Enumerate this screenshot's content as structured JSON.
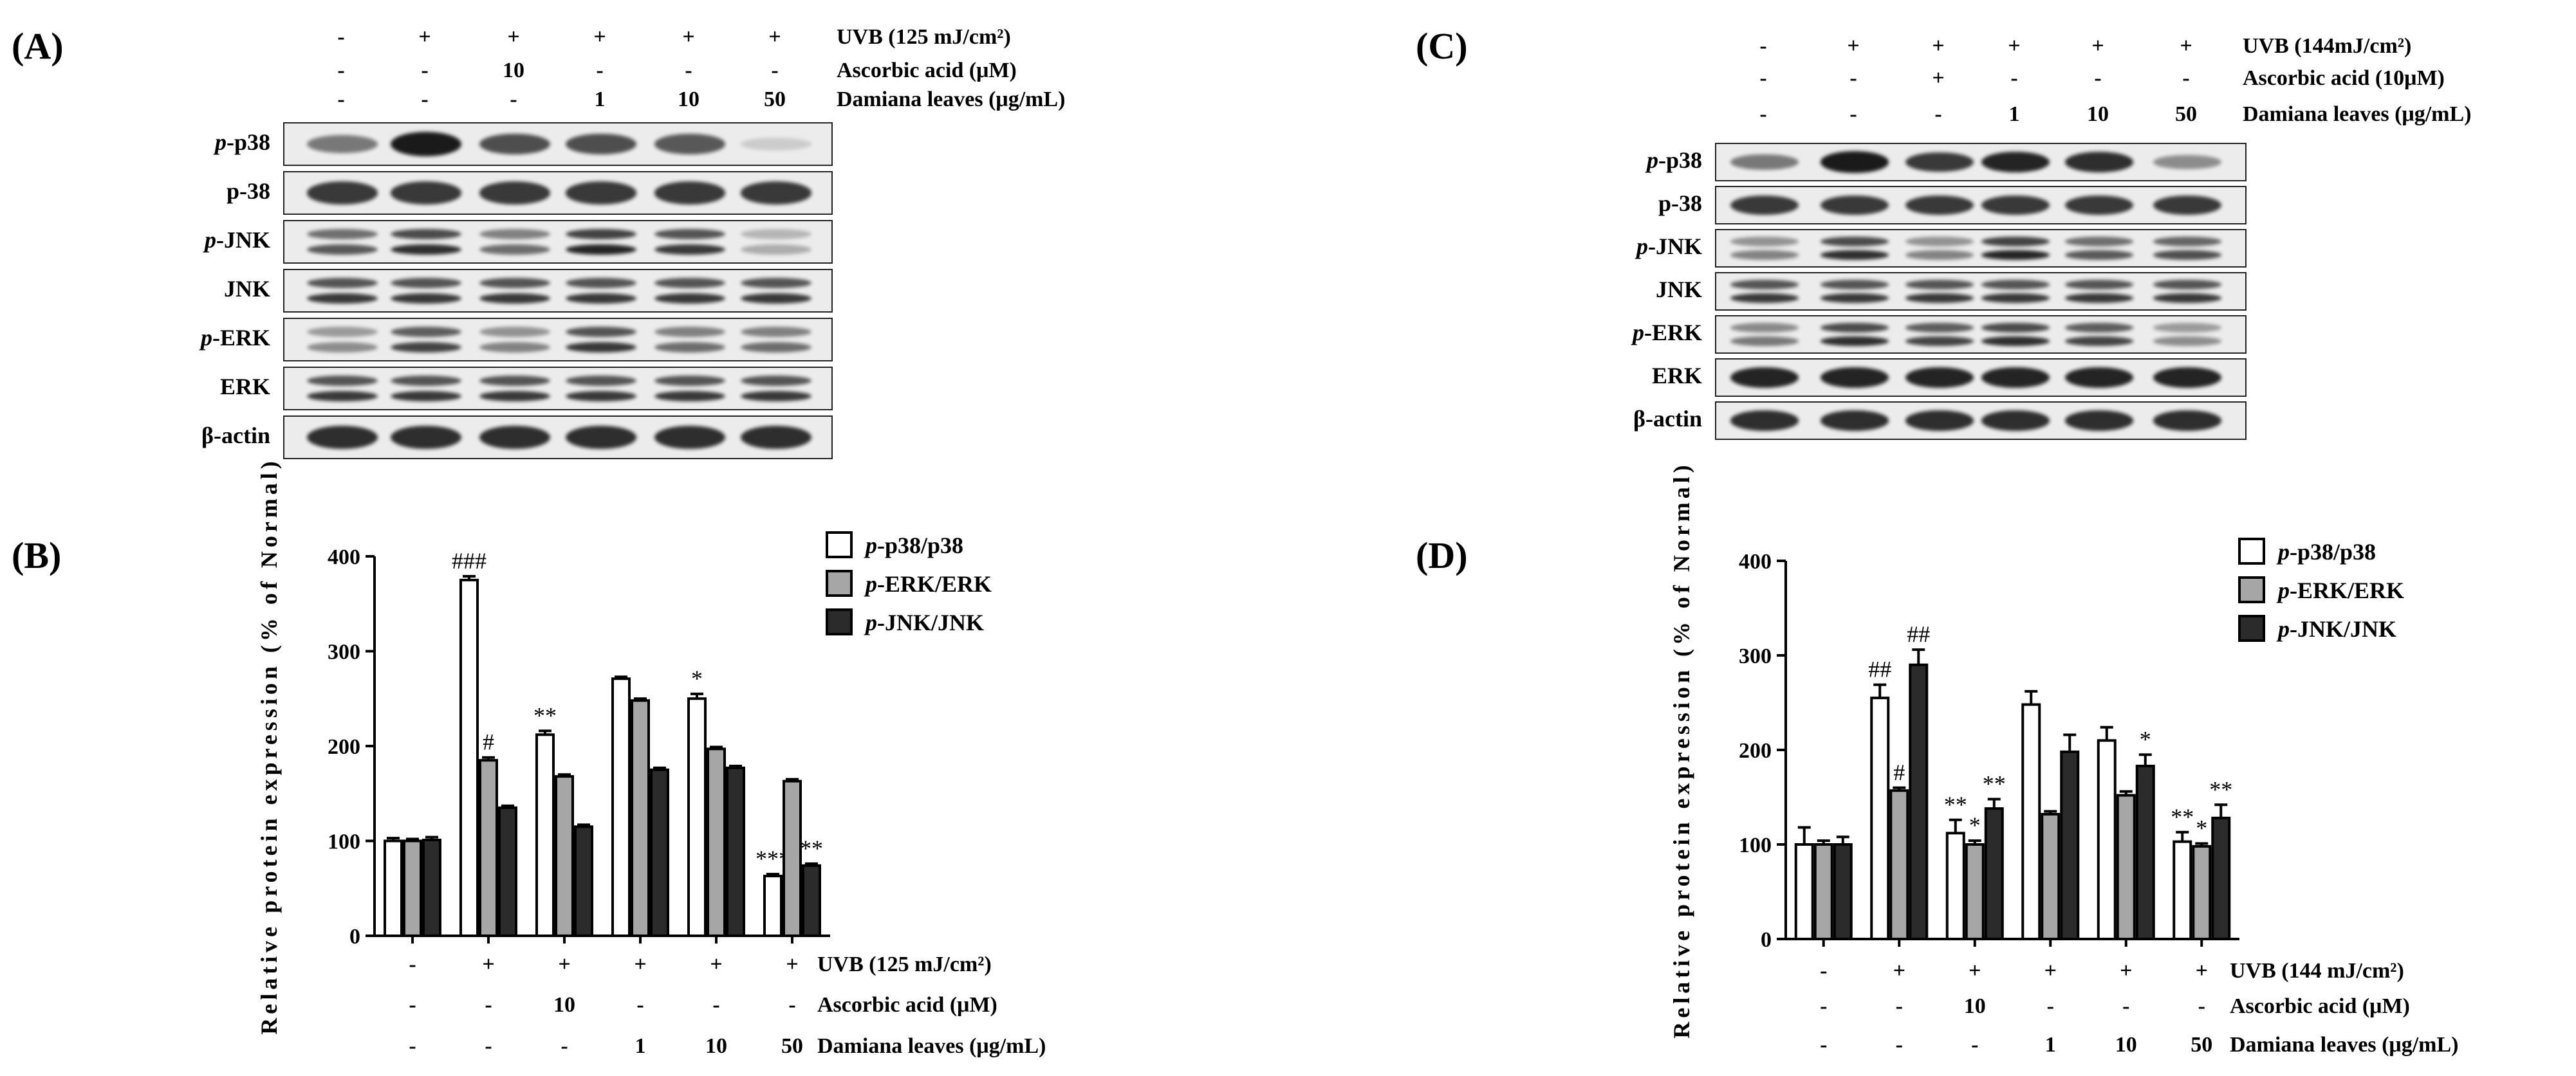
{
  "panels": {
    "A": {
      "label": "(A)",
      "treatments": [
        {
          "label": "UVB (125 mJ/cm²)",
          "values": [
            "-",
            "+",
            "+",
            "+",
            "+",
            "+"
          ]
        },
        {
          "label": "Ascorbic acid (μM)",
          "values": [
            "-",
            "-",
            "10",
            "-",
            "-",
            "-"
          ]
        },
        {
          "label": "Damiana leaves (μg/mL)",
          "values": [
            "-",
            "-",
            "-",
            "1",
            "10",
            "50"
          ]
        }
      ],
      "blots": [
        {
          "prefix": "p",
          "name": "-p38",
          "intensity": [
            0.55,
            1.0,
            0.75,
            0.75,
            0.7,
            0.15
          ],
          "double": false
        },
        {
          "prefix": "",
          "name": "p-38",
          "intensity": [
            0.85,
            0.85,
            0.85,
            0.85,
            0.85,
            0.85
          ],
          "double": false
        },
        {
          "prefix": "p",
          "name": "-JNK",
          "intensity": [
            0.7,
            0.9,
            0.6,
            0.95,
            0.85,
            0.3
          ],
          "double": true
        },
        {
          "prefix": "",
          "name": "JNK",
          "intensity": [
            0.85,
            0.85,
            0.85,
            0.85,
            0.85,
            0.85
          ],
          "double": true
        },
        {
          "prefix": "p",
          "name": "-ERK",
          "intensity": [
            0.45,
            0.8,
            0.5,
            0.85,
            0.6,
            0.6
          ],
          "double": true
        },
        {
          "prefix": "",
          "name": "ERK",
          "intensity": [
            0.85,
            0.85,
            0.85,
            0.85,
            0.85,
            0.85
          ],
          "double": true
        },
        {
          "prefix": "",
          "name": "β-actin",
          "intensity": [
            0.9,
            0.9,
            0.9,
            0.9,
            0.9,
            0.9
          ],
          "double": false
        }
      ]
    },
    "B": {
      "label": "(B)",
      "treatments": [
        {
          "label": "UVB (125 mJ/cm²)",
          "values": [
            "-",
            "+",
            "+",
            "+",
            "+",
            "+"
          ]
        },
        {
          "label": "Ascorbic acid (μM)",
          "values": [
            "-",
            "-",
            "10",
            "-",
            "-",
            "-"
          ]
        },
        {
          "label": "Damiana leaves (μg/mL)",
          "values": [
            "-",
            "-",
            "-",
            "1",
            "10",
            "50"
          ]
        }
      ]
    },
    "C": {
      "label": "(C)",
      "treatments": [
        {
          "label": "UVB (144mJ/cm²)",
          "values": [
            "-",
            "+",
            "+",
            "+",
            "+",
            "+"
          ]
        },
        {
          "label": "Ascorbic acid (10μM)",
          "values": [
            "-",
            "-",
            "+",
            "-",
            "-",
            "-"
          ]
        },
        {
          "label": "Damiana leaves (μg/mL)",
          "values": [
            "-",
            "-",
            "-",
            "1",
            "10",
            "50"
          ]
        }
      ],
      "blots": [
        {
          "prefix": "p",
          "name": "-p38",
          "intensity": [
            0.55,
            1.0,
            0.85,
            0.95,
            0.9,
            0.45
          ],
          "double": false
        },
        {
          "prefix": "",
          "name": "p-38",
          "intensity": [
            0.85,
            0.85,
            0.85,
            0.85,
            0.85,
            0.85
          ],
          "double": false
        },
        {
          "prefix": "p",
          "name": "-JNK",
          "intensity": [
            0.5,
            0.9,
            0.5,
            0.95,
            0.7,
            0.75
          ],
          "double": true
        },
        {
          "prefix": "",
          "name": "JNK",
          "intensity": [
            0.85,
            0.85,
            0.85,
            0.85,
            0.85,
            0.85
          ],
          "double": true
        },
        {
          "prefix": "p",
          "name": "-ERK",
          "intensity": [
            0.55,
            0.9,
            0.8,
            0.9,
            0.8,
            0.45
          ],
          "double": true
        },
        {
          "prefix": "",
          "name": "ERK",
          "intensity": [
            0.95,
            0.95,
            0.95,
            0.95,
            0.95,
            0.95
          ],
          "double": false
        },
        {
          "prefix": "",
          "name": "β-actin",
          "intensity": [
            0.9,
            0.9,
            0.9,
            0.9,
            0.9,
            0.9
          ],
          "double": false
        }
      ]
    },
    "D": {
      "label": "(D)",
      "treatments": [
        {
          "label": "UVB (144 mJ/cm²)",
          "values": [
            "-",
            "+",
            "+",
            "+",
            "+",
            "+"
          ]
        },
        {
          "label": "Ascorbic acid (μM)",
          "values": [
            "-",
            "-",
            "10",
            "-",
            "-",
            "-"
          ]
        },
        {
          "label": "Damiana leaves (μg/mL)",
          "values": [
            "-",
            "-",
            "-",
            "1",
            "10",
            "50"
          ]
        }
      ]
    }
  },
  "chart_data": [
    {
      "panel": "B",
      "type": "bar",
      "ylabel": "Relative protein expression (% of Normal)",
      "ylim": [
        0,
        400
      ],
      "yticks": [
        0,
        100,
        200,
        300,
        400
      ],
      "colors": [
        "#ffffff",
        "#a6a6a6",
        "#2b2b2b"
      ],
      "series": [
        {
          "name": "p-p38/p38",
          "prefix": "p",
          "suffix": "-p38/p38",
          "values": [
            100,
            375,
            212,
            271,
            250,
            63
          ],
          "errors": [
            3,
            4,
            4,
            2,
            5,
            2
          ],
          "annotations": [
            "",
            "###",
            "**",
            "",
            "*",
            "***"
          ]
        },
        {
          "name": "p-ERK/ERK",
          "prefix": "p",
          "suffix": "-ERK/ERK",
          "values": [
            100,
            185,
            168,
            248,
            197,
            163
          ],
          "errors": [
            2,
            3,
            2,
            2,
            2,
            2
          ],
          "annotations": [
            "",
            "#",
            "",
            "",
            "",
            ""
          ]
        },
        {
          "name": "p-JNK/JNK",
          "prefix": "p",
          "suffix": "-JNK/JNK",
          "values": [
            101,
            135,
            115,
            175,
            177,
            74
          ],
          "errors": [
            3,
            2,
            2,
            2,
            2,
            2
          ],
          "annotations": [
            "",
            "",
            "",
            "",
            "",
            "**"
          ]
        }
      ]
    },
    {
      "panel": "D",
      "type": "bar",
      "ylabel": "Relative protein expression (% of Normal)",
      "ylim": [
        0,
        400
      ],
      "yticks": [
        0,
        100,
        200,
        300,
        400
      ],
      "colors": [
        "#ffffff",
        "#a6a6a6",
        "#2b2b2b"
      ],
      "series": [
        {
          "name": "p-p38/p38",
          "prefix": "p",
          "suffix": "-p38/p38",
          "values": [
            100,
            255,
            112,
            248,
            210,
            103
          ],
          "errors": [
            18,
            14,
            14,
            14,
            14,
            10
          ],
          "annotations": [
            "",
            "##",
            "**",
            "",
            "",
            "**"
          ]
        },
        {
          "name": "p-ERK/ERK",
          "prefix": "p",
          "suffix": "-ERK/ERK",
          "values": [
            100,
            157,
            100,
            132,
            152,
            98
          ],
          "errors": [
            4,
            3,
            4,
            3,
            4,
            3
          ],
          "annotations": [
            "",
            "#",
            "*",
            "",
            "",
            "*"
          ]
        },
        {
          "name": "p-JNK/JNK",
          "prefix": "p",
          "suffix": "-JNK/JNK",
          "values": [
            100,
            290,
            138,
            198,
            183,
            128
          ],
          "errors": [
            8,
            16,
            10,
            18,
            12,
            14
          ],
          "annotations": [
            "",
            "##",
            "**",
            "",
            "*",
            "**"
          ]
        }
      ]
    }
  ]
}
